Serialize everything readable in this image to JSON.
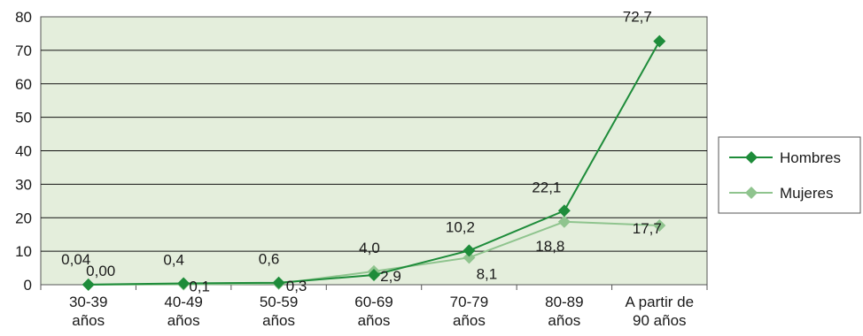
{
  "chart_data": {
    "type": "line",
    "title": "",
    "xlabel": "",
    "ylabel": "",
    "categories": [
      [
        "30-39",
        "años"
      ],
      [
        "40-49",
        "años"
      ],
      [
        "50-59",
        "años"
      ],
      [
        "60-69",
        "años"
      ],
      [
        "70-79",
        "años"
      ],
      [
        "80-89",
        "años"
      ],
      [
        "A partir de",
        "90 años"
      ]
    ],
    "ylim": [
      0,
      80
    ],
    "yticks": [
      0,
      10,
      20,
      30,
      40,
      50,
      60,
      70,
      80
    ],
    "grid": true,
    "plot_background": "#e4eedc",
    "legend_position": "right",
    "series": [
      {
        "name": "Hombres",
        "color": "#1e8c3a",
        "marker": "diamond",
        "values": [
          0.04,
          0.4,
          0.6,
          2.9,
          10.2,
          22.1,
          72.7
        ],
        "labels": [
          "0,04",
          "0,4",
          "0,6",
          "2,9",
          "10,2",
          "22,1",
          "72,7"
        ]
      },
      {
        "name": "Mujeres",
        "color": "#8fc48e",
        "marker": "diamond",
        "values": [
          0.0,
          0.1,
          0.3,
          4.0,
          8.1,
          18.8,
          17.7
        ],
        "labels": [
          "0,00",
          "0,1",
          "0,3",
          "4,0",
          "8,1",
          "18,8",
          "17,7"
        ]
      }
    ]
  }
}
